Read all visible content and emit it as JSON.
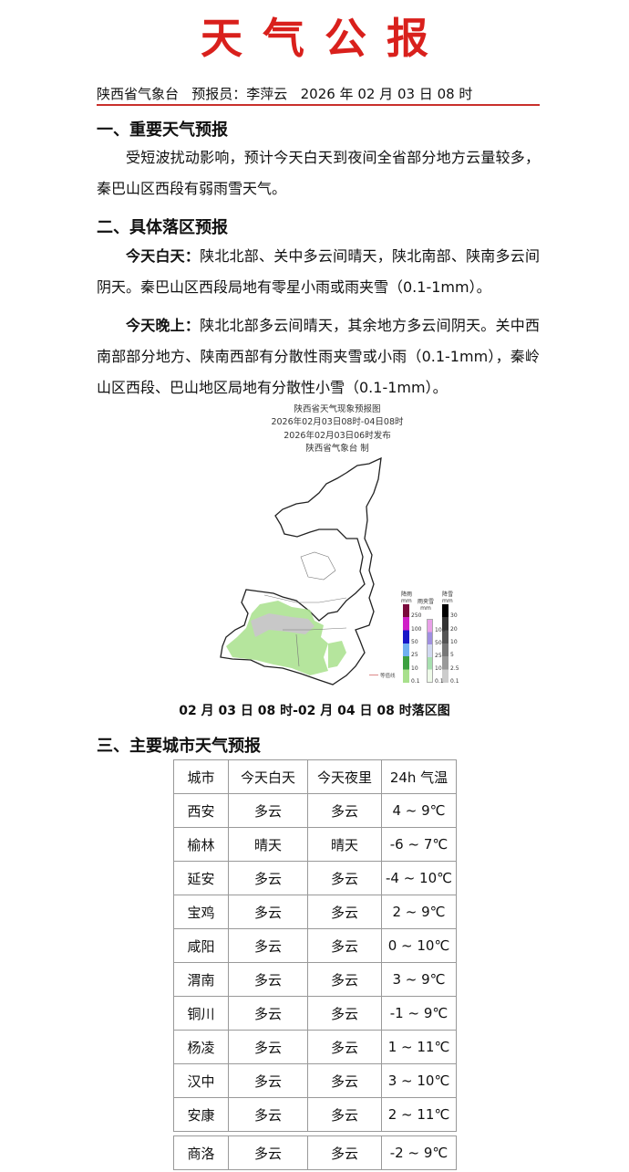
{
  "title": "天气公报",
  "meta": "陕西省气象台   预报员：李萍云   2026 年 02 月 03 日 08 时",
  "section1": {
    "heading": "一、重要天气预报",
    "text": "受短波扰动影响，预计今天白天到夜间全省部分地方云量较多，秦巴山区西段有弱雨雪天气。"
  },
  "section2": {
    "heading": "二、具体落区预报",
    "day_label": "今天白天：",
    "day_text": "陕北北部、关中多云间晴天，陕北南部、陕南多云间阴天。秦巴山区西段局地有零星小雨或雨夹雪（0.1-1mm）。",
    "night_label": "今天晚上：",
    "night_text": "陕北北部多云间晴天，其余地方多云间阴天。关中西南部部分地方、陕南西部有分散性雨夹雪或小雨（0.1-1mm），秦岭山区西段、巴山地区局地有分散性小雪（0.1-1mm）。"
  },
  "map": {
    "title": "陕西省天气现象预报图",
    "period": "2026年02月03日08时-04日08时",
    "issued": "2026年02月03日06时发布",
    "maker": "陕西省气象台 制",
    "legend_rain": "降雨",
    "legend_sleet": "雨夹雪",
    "legend_snow": "降雪",
    "unit": "mm",
    "contour_label": "等值线",
    "rain_ticks": [
      "250",
      "100",
      "50",
      "25",
      "10",
      "0.1"
    ],
    "sleet_ticks": [
      "100",
      "50",
      "25",
      "10",
      "0.1"
    ],
    "snow_ticks": [
      "30",
      "20",
      "10",
      "5",
      "2.5",
      "0.1"
    ],
    "colors": {
      "rain": "#a8e08c",
      "snow": "#c8c8c8"
    }
  },
  "map_caption": "02 月 03 日 08 时-02 月 04 日 08 时落区图",
  "section3": {
    "heading": "三、主要城市天气预报"
  },
  "table": {
    "headers": [
      "城市",
      "今天白天",
      "今天夜里",
      "24h 气温"
    ],
    "rows": [
      [
        "西安",
        "多云",
        "多云",
        "4 ~ 9℃"
      ],
      [
        "榆林",
        "晴天",
        "晴天",
        "-6 ~ 7℃"
      ],
      [
        "延安",
        "多云",
        "多云",
        "-4 ~ 10℃"
      ],
      [
        "宝鸡",
        "多云",
        "多云",
        "2 ~ 9℃"
      ],
      [
        "咸阳",
        "多云",
        "多云",
        "0 ~ 10℃"
      ],
      [
        "渭南",
        "多云",
        "多云",
        "3 ~ 9℃"
      ],
      [
        "铜川",
        "多云",
        "多云",
        "-1 ~ 9℃"
      ],
      [
        "杨凌",
        "多云",
        "多云",
        "1 ~ 11℃"
      ],
      [
        "汉中",
        "多云",
        "多云",
        "3 ~ 10℃"
      ],
      [
        "安康",
        "多云",
        "多云",
        "2 ~ 11℃"
      ]
    ],
    "last_row": [
      "商洛",
      "多云",
      "多云",
      "-2 ~ 9℃"
    ]
  }
}
